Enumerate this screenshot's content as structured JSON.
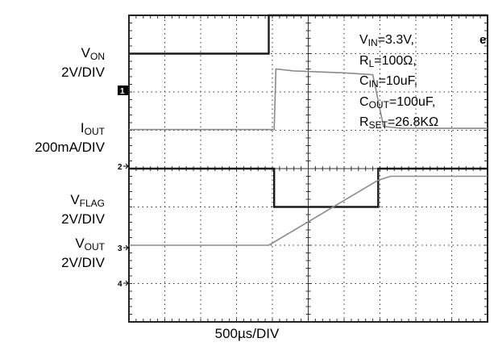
{
  "labels": [
    {
      "main": "V",
      "sub": "ON",
      "scale": "2V/DIV"
    },
    {
      "main": "I",
      "sub": "OUT",
      "scale": "200mA/DIV"
    },
    {
      "main": "V",
      "sub": "FLAG",
      "scale": "2V/DIV"
    },
    {
      "main": "V",
      "sub": "OUT",
      "scale": "2V/DIV"
    }
  ],
  "markers": [
    "1",
    "2",
    "3",
    "4"
  ],
  "conditions": [
    {
      "main": "V",
      "sub": "IN",
      "rest": "=3.3V,"
    },
    {
      "main": "R",
      "sub": "L",
      "rest": "=100Ω,"
    },
    {
      "main": "C",
      "sub": "IN",
      "rest": "=10uF,"
    },
    {
      "main": "C",
      "sub": "OUT",
      "rest": "=100uF,"
    },
    {
      "main": "R",
      "sub": "SET",
      "rest": "=26.8KΩ"
    }
  ],
  "edge_mark": "e",
  "xlabel": "500µs/DIV",
  "colors": {
    "trace_dark": "#1a1a1a",
    "trace_light": "#8a8a8a",
    "grid": "#333333"
  },
  "chart_data": {
    "type": "line",
    "title": "",
    "xlabel": "500µs/DIV",
    "x_divisions": 10,
    "y_divisions": 8,
    "grid": true,
    "series": [
      {
        "name": "V_ON 2V/DIV",
        "color": "#1a1a1a",
        "x": [
          0,
          3.9,
          3.9,
          10
        ],
        "y": [
          7.0,
          7.0,
          8.0,
          8.0
        ]
      },
      {
        "name": "I_OUT 200mA/DIV",
        "color": "#8a8a8a",
        "x": [
          0,
          4.05,
          4.1,
          4.6,
          6.0,
          6.8,
          7.1,
          7.6,
          10
        ],
        "y": [
          5.02,
          5.02,
          6.6,
          6.55,
          6.5,
          6.45,
          5.1,
          5.05,
          5.05
        ]
      },
      {
        "name": "V_FLAG 2V/DIV",
        "color": "#1a1a1a",
        "x": [
          0,
          4.05,
          4.05,
          6.95,
          6.95,
          10
        ],
        "y": [
          4.0,
          4.0,
          3.0,
          3.0,
          4.0,
          4.0
        ]
      },
      {
        "name": "V_OUT 2V/DIV",
        "color": "#8a8a8a",
        "x": [
          0,
          3.9,
          6.95,
          7.3,
          10
        ],
        "y": [
          2.0,
          2.0,
          3.7,
          3.8,
          3.8
        ]
      }
    ]
  }
}
